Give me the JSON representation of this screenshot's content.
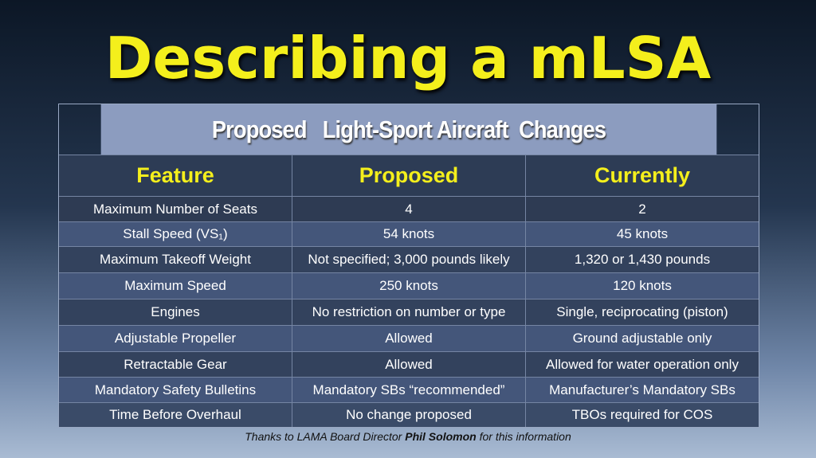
{
  "title": "Describing a mLSA",
  "table": {
    "caption": "Proposed   Light-Sport Aircraft  Changes",
    "header": [
      "Feature",
      "Proposed",
      "Currently"
    ],
    "rows": [
      [
        "Maximum Number of Seats",
        "4",
        "2"
      ],
      [
        "Stall Speed (VS₁)",
        "54 knots",
        "45 knots"
      ],
      [
        "Maximum Takeoff Weight",
        "Not specified; 3,000 pounds likely",
        "1,320 or 1,430 pounds"
      ],
      [
        "Maximum Speed",
        "250 knots",
        "120 knots"
      ],
      [
        "Engines",
        "No restriction on number or type",
        "Single, reciprocating (piston)"
      ],
      [
        "Adjustable Propeller",
        "Allowed",
        "Ground adjustable only"
      ],
      [
        "Retractable Gear",
        "Allowed",
        "Allowed for water operation only"
      ],
      [
        "Mandatory Safety Bulletins",
        "Mandatory SBs “recommended”",
        "Manufacturer’s Mandatory SBs"
      ],
      [
        "Time Before Overhaul",
        "No change proposed",
        "TBOs required for COS"
      ]
    ]
  },
  "footer": {
    "before": "Thanks to LAMA Board Director",
    "name": "Phil Solomon",
    "after": "for this information"
  }
}
